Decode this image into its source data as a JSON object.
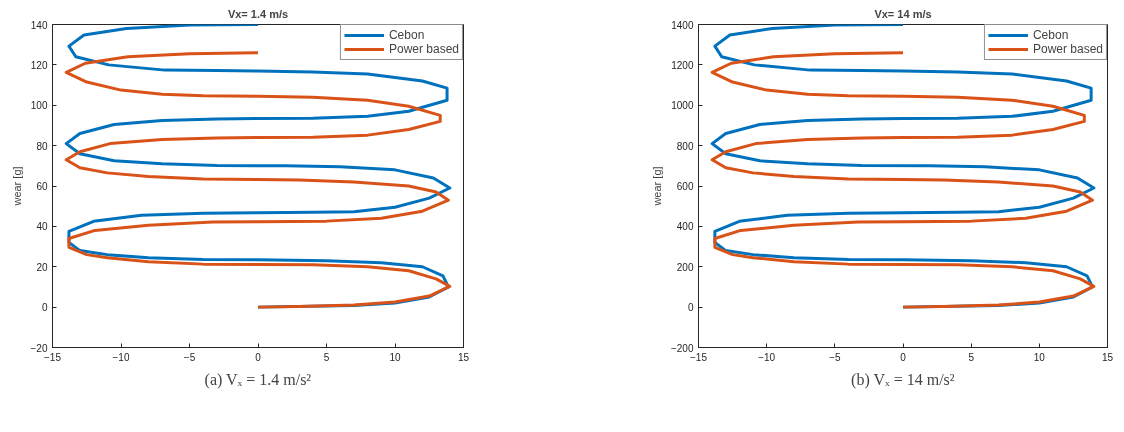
{
  "chart_data": [
    {
      "type": "line",
      "title": "Vx= 1.4 m/s",
      "ylabel": "wear [g]",
      "annotations": [
        "(a) Vₓ = 1.4 m/s²"
      ],
      "xlim": [
        -15,
        15
      ],
      "xticks": [
        -15,
        -10,
        -5,
        0,
        5,
        10,
        15
      ],
      "ylim": [
        -20,
        140
      ],
      "yticks": [
        -20,
        0,
        20,
        40,
        60,
        80,
        100,
        120,
        140
      ],
      "legend": "top right",
      "line_style": "solid",
      "series": [
        {
          "name": "Cebon",
          "color": "#0072bd",
          "x": [
            0,
            7,
            10,
            12.5,
            13.9,
            13.5,
            12,
            9,
            5,
            0,
            -4,
            -8,
            -11,
            -13,
            -13.8,
            -13.8,
            -12,
            -8.5,
            -4,
            0,
            4,
            7,
            10,
            12.5,
            14,
            12.8,
            10,
            6,
            2,
            -3,
            -7,
            -10.5,
            -13,
            -14,
            -13,
            -10.5,
            -7,
            -3,
            0,
            4,
            8,
            11,
            13.8,
            13.8,
            12,
            8,
            4,
            0,
            -3,
            -6.8,
            -10.9,
            -13.3,
            -13.8,
            -12.7,
            -9.6,
            -5,
            0
          ],
          "values": [
            0,
            0.8,
            2,
            5,
            10,
            15.5,
            20,
            22,
            23,
            23.5,
            23.6,
            24.5,
            26,
            28,
            32,
            37.5,
            42.5,
            45.5,
            46.5,
            46.8,
            47,
            47.3,
            49.5,
            54,
            59,
            64,
            68,
            69.5,
            70,
            70.2,
            71,
            72.5,
            76,
            81,
            86,
            90.5,
            92.5,
            93.2,
            93.4,
            93.5,
            94.5,
            97,
            102.5,
            108.5,
            112,
            115.5,
            116.5,
            117,
            117.2,
            117.4,
            120,
            124,
            129.3,
            134.8,
            138,
            139.7,
            140
          ]
        },
        {
          "name": "Power based",
          "color": "#d95319",
          "x": [
            0,
            3,
            7,
            10,
            12.5,
            14,
            13,
            11,
            8,
            4,
            0,
            -4,
            -8,
            -11,
            -12.5,
            -13.8,
            -13.8,
            -11.9,
            -8,
            -3.3,
            0,
            5,
            9,
            12,
            13.9,
            13,
            11,
            7,
            3,
            0,
            -4,
            -8,
            -11,
            -13,
            -14,
            -13,
            -10.8,
            -7,
            -3,
            0,
            4,
            8,
            11,
            13.3,
            13.3,
            11,
            8,
            4,
            0,
            -4,
            -7,
            -10,
            -12.5,
            -14,
            -12.6,
            -9.5,
            -5,
            0
          ],
          "values": [
            0,
            0.3,
            1,
            2.5,
            5.5,
            10.3,
            14,
            18,
            20,
            21,
            21.1,
            21.3,
            22.5,
            24.5,
            26,
            29.6,
            34,
            38,
            40.5,
            42.2,
            42.3,
            42.6,
            44,
            47.5,
            53,
            57,
            60,
            62,
            63,
            63.2,
            63.5,
            64.7,
            66.5,
            69,
            73,
            77,
            81,
            83,
            83.8,
            84,
            84.2,
            85.2,
            88,
            92,
            95,
            99.5,
            102.5,
            104,
            104.5,
            104.7,
            105.5,
            107.5,
            111.5,
            116.3,
            120.8,
            124,
            125.5,
            126
          ]
        }
      ]
    },
    {
      "type": "line",
      "title": "Vx= 14 m/s",
      "ylabel": "wear [g]",
      "annotations": [
        "(b) Vₓ = 14 m/s²"
      ],
      "xlim": [
        -15,
        15
      ],
      "xticks": [
        -15,
        -10,
        -5,
        0,
        5,
        10,
        15
      ],
      "ylim": [
        -200,
        1400
      ],
      "yticks": [
        -200,
        0,
        200,
        400,
        600,
        800,
        1000,
        1200,
        1400
      ],
      "legend": "top right",
      "line_style": "solid",
      "series": [
        {
          "name": "Cebon",
          "color": "#0072bd",
          "x": [
            0,
            7,
            10,
            12.5,
            13.9,
            13.5,
            12,
            9,
            5,
            0,
            -4,
            -8,
            -11,
            -13,
            -13.8,
            -13.8,
            -12,
            -8.5,
            -4,
            0,
            4,
            7,
            10,
            12.5,
            14,
            12.8,
            10,
            6,
            2,
            -3,
            -7,
            -10.5,
            -13,
            -14,
            -13,
            -10.5,
            -7,
            -3,
            0,
            4,
            8,
            11,
            13.8,
            13.8,
            12,
            8,
            4,
            0,
            -3,
            -6.8,
            -10.9,
            -13.3,
            -13.8,
            -12.7,
            -9.6,
            -5,
            0
          ],
          "values": [
            0,
            8,
            20,
            50,
            100,
            155,
            200,
            220,
            230,
            235,
            236,
            245,
            260,
            280,
            320,
            375,
            425,
            455,
            465,
            468,
            470,
            473,
            495,
            540,
            590,
            640,
            680,
            695,
            700,
            702,
            710,
            725,
            760,
            810,
            860,
            905,
            925,
            932,
            934,
            935,
            945,
            970,
            1025,
            1085,
            1120,
            1155,
            1165,
            1170,
            1172,
            1174,
            1200,
            1240,
            1293,
            1348,
            1380,
            1397,
            1400
          ]
        },
        {
          "name": "Power based",
          "color": "#d95319",
          "x": [
            0,
            3,
            7,
            10,
            12.5,
            14,
            13,
            11,
            8,
            4,
            0,
            -4,
            -8,
            -11,
            -12.5,
            -13.8,
            -13.8,
            -11.9,
            -8,
            -3.3,
            0,
            5,
            9,
            12,
            13.9,
            13,
            11,
            7,
            3,
            0,
            -4,
            -8,
            -11,
            -13,
            -14,
            -13,
            -10.8,
            -7,
            -3,
            0,
            4,
            8,
            11,
            13.3,
            13.3,
            11,
            8,
            4,
            0,
            -4,
            -7,
            -10,
            -12.5,
            -14,
            -12.6,
            -9.5,
            -5,
            0
          ],
          "values": [
            0,
            3,
            10,
            25,
            55,
            103,
            140,
            180,
            200,
            210,
            211,
            213,
            225,
            245,
            260,
            296,
            340,
            380,
            405,
            422,
            423,
            426,
            440,
            475,
            530,
            570,
            600,
            620,
            630,
            632,
            635,
            647,
            665,
            690,
            730,
            770,
            810,
            830,
            838,
            840,
            842,
            852,
            880,
            920,
            950,
            995,
            1025,
            1040,
            1045,
            1047,
            1055,
            1075,
            1115,
            1163,
            1208,
            1240,
            1255,
            1260
          ]
        }
      ]
    }
  ]
}
